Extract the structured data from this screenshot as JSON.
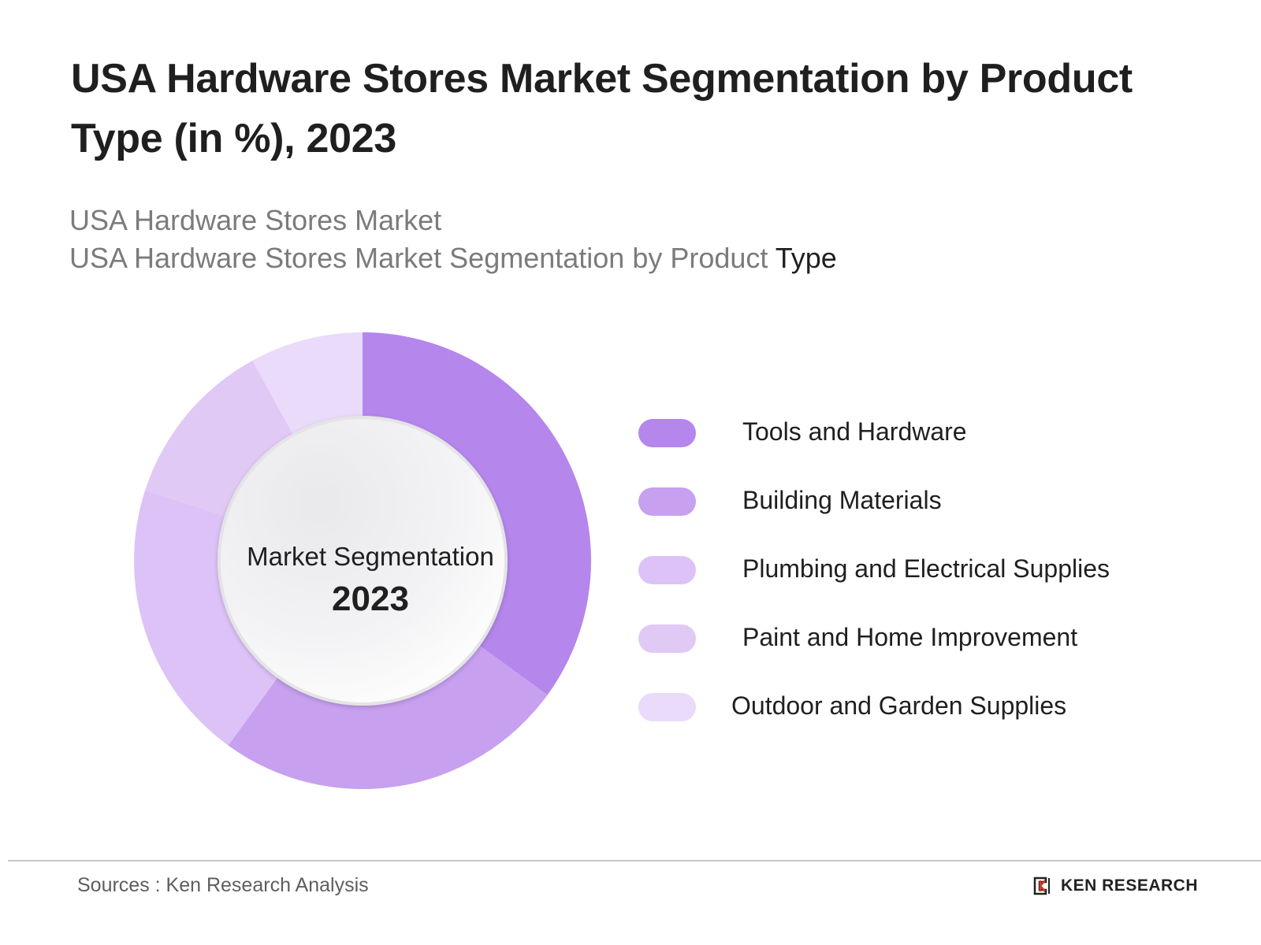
{
  "title": "USA Hardware Stores Market Segmentation by Product Type (in %), 2023",
  "subtitle_line1": "USA Hardware Stores Market",
  "subtitle_line2_main": "USA Hardware Stores Market Segmentation by Product",
  "subtitle_line2_end": "Type",
  "center": {
    "label": "Market Segmentation",
    "year": "2023"
  },
  "chart_data": {
    "type": "pie",
    "donut": true,
    "title": "USA Hardware Stores Market Segmentation by Product Type (in %), 2023",
    "categories": [
      "Tools and Hardware",
      "Building Materials",
      "Plumbing and Electrical Supplies",
      "Paint and Home Improvement",
      "Outdoor and Garden Supplies"
    ],
    "values": [
      35,
      25,
      20,
      12,
      8
    ],
    "colors": [
      "#b586ec",
      "#c7a0f0",
      "#dcc2f7",
      "#e1c9f6",
      "#eadbfa"
    ],
    "legend_position": "right"
  },
  "footer": {
    "source": "Sources : Ken Research Analysis",
    "brand": "KEN RESEARCH"
  }
}
